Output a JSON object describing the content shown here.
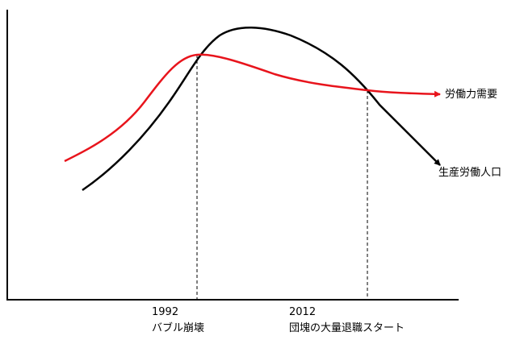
{
  "chart_data": {
    "type": "line",
    "title": "",
    "xlabel": "",
    "ylabel": "",
    "series": [
      {
        "name": "労働力需要",
        "color": "#e8141c"
      },
      {
        "name": "生産労働人口",
        "color": "#000000"
      }
    ],
    "markers": [
      {
        "year": "1992",
        "event": "バブル崩壊"
      },
      {
        "year": "2012",
        "event": "団塊の大量退職スタート"
      }
    ],
    "grid": false,
    "legend": "none"
  },
  "colors": {
    "demand_line": "#e8141c",
    "population_line": "#000000",
    "axis": "#000000"
  }
}
